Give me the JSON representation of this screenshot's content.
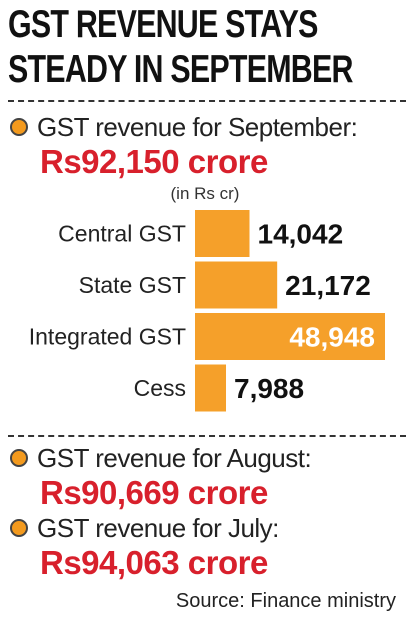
{
  "title_lines": [
    "GST REVENUE STAYS",
    "STEADY IN SEPTEMBER"
  ],
  "september": {
    "label": "GST revenue for September:",
    "value": "Rs92,150 crore"
  },
  "august": {
    "label": "GST revenue for August:",
    "value": "Rs90,669 crore"
  },
  "july": {
    "label": "GST revenue for July:",
    "value": "Rs94,063 crore"
  },
  "source": "Source: Finance ministry",
  "colors": {
    "bar": "#f5a02a",
    "value_red": "#d8202c",
    "bullet": "#f39a1e"
  },
  "chart_data": {
    "type": "bar",
    "orientation": "horizontal",
    "unit_label": "(in Rs cr)",
    "categories": [
      "Central GST",
      "State GST",
      "Integrated GST",
      "Cess"
    ],
    "values": [
      14042,
      21172,
      48948,
      7988
    ],
    "value_labels": [
      "14,042",
      "21,172",
      "48,948",
      "7,988"
    ],
    "grid": false
  }
}
